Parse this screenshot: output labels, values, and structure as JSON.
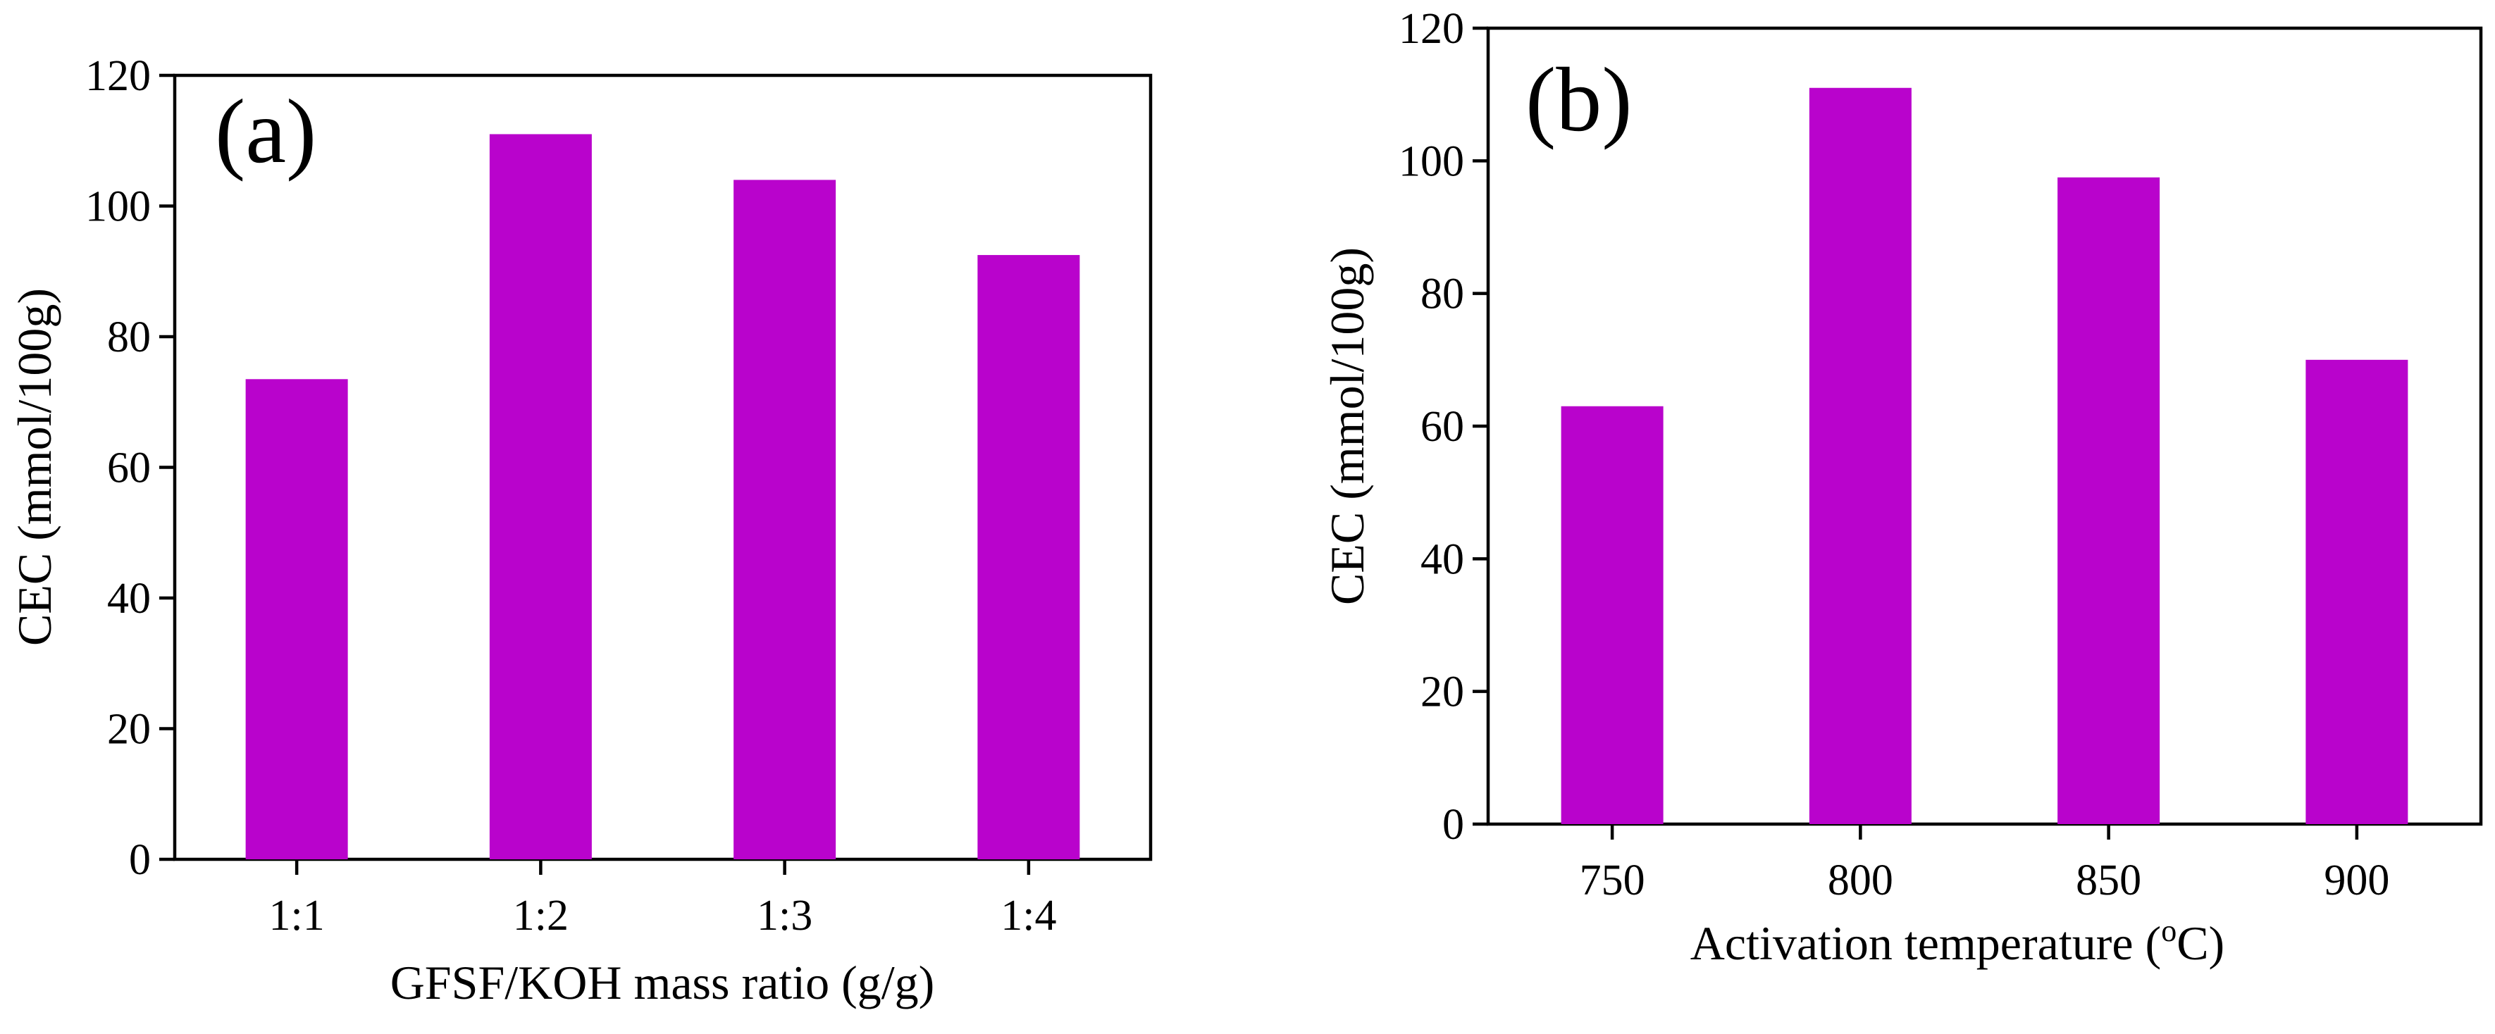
{
  "chart_data": [
    {
      "type": "bar",
      "panel_label": "(a)",
      "categories": [
        "1:1",
        "1:2",
        "1:3",
        "1:4"
      ],
      "values": [
        73.5,
        111,
        104,
        92.5
      ],
      "title": "",
      "xlabel": "GFSF/KOH mass ratio (g/g)",
      "ylabel": "CEC (mmol/100g)",
      "ylim": [
        0,
        120
      ],
      "yticks": [
        "0",
        "20",
        "40",
        "60",
        "80",
        "100",
        "120"
      ],
      "bar_color": "#b903cc",
      "grid": false
    },
    {
      "type": "bar",
      "panel_label": "(b)",
      "categories": [
        "750",
        "800",
        "850",
        "900"
      ],
      "values": [
        63,
        111,
        97.5,
        70
      ],
      "title": "",
      "xlabel_prefix": "Activation temperature (",
      "xlabel_sup": "o",
      "xlabel_suffix": "C)",
      "ylabel": "CEC (mmol/100g)",
      "ylim": [
        0,
        120
      ],
      "yticks": [
        "0",
        "20",
        "40",
        "60",
        "80",
        "100",
        "120"
      ],
      "bar_color": "#b903cc",
      "grid": false
    }
  ]
}
